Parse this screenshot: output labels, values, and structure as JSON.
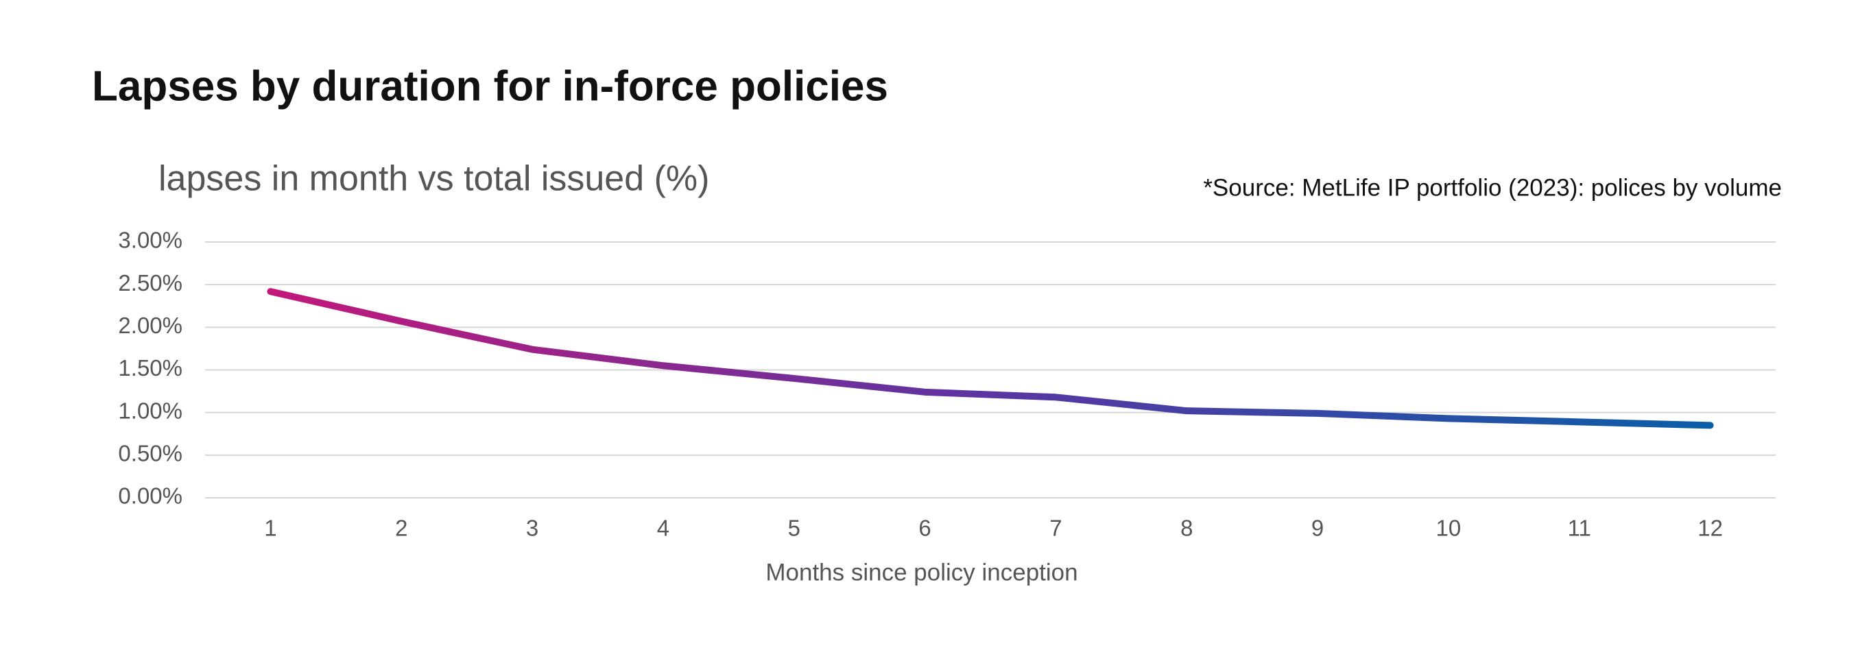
{
  "chart_data": {
    "type": "line",
    "title": "Lapses by duration for in-force policies",
    "source": "*Source: MetLife IP portfolio (2023): polices by volume",
    "x_label": "Months since policy inception",
    "categories": [
      "1",
      "2",
      "3",
      "4",
      "5",
      "6",
      "7",
      "8",
      "9",
      "10",
      "11",
      "12"
    ],
    "series": [
      {
        "name": "lapses in month vs total issued (%)",
        "gradient": [
          "#c2187a",
          "#5a35a2",
          "#0b5ea8"
        ],
        "values": [
          2.42,
          2.07,
          1.74,
          1.55,
          1.4,
          1.24,
          1.18,
          1.02,
          0.99,
          0.93,
          0.89,
          0.85
        ]
      }
    ],
    "ylim": [
      0,
      3
    ],
    "yticks": [
      {
        "value": 0,
        "label": "0.00%"
      },
      {
        "value": 0.5,
        "label": "0.50%"
      },
      {
        "value": 1,
        "label": "1.00%"
      },
      {
        "value": 1.5,
        "label": "1.50%"
      },
      {
        "value": 2,
        "label": "2.00%"
      },
      {
        "value": 2.5,
        "label": "2.50%"
      },
      {
        "value": 3,
        "label": "3.00%"
      }
    ],
    "grid": true
  }
}
